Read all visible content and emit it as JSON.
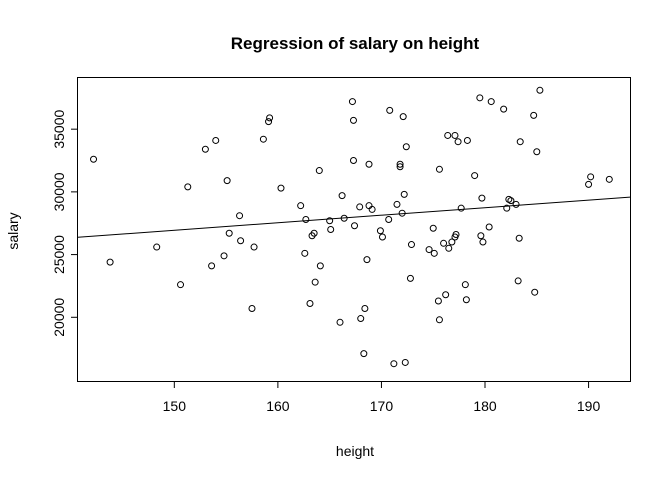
{
  "chart_data": {
    "type": "scatter",
    "title": "Regression of salary on height",
    "xlabel": "height",
    "ylabel": "salary",
    "xlim": [
      140.7,
      194.0
    ],
    "ylim": [
      14920,
      39080
    ],
    "xticks": [
      150,
      160,
      170,
      180,
      190
    ],
    "yticks": [
      20000,
      25000,
      30000,
      35000
    ],
    "grid": false,
    "regression_line": {
      "x": [
        140.7,
        194.0
      ],
      "y": [
        26380,
        29580
      ]
    },
    "points": [
      {
        "x": 142.2,
        "y": 32600
      },
      {
        "x": 143.8,
        "y": 24400
      },
      {
        "x": 148.3,
        "y": 25600
      },
      {
        "x": 150.6,
        "y": 22600
      },
      {
        "x": 151.3,
        "y": 30400
      },
      {
        "x": 153.0,
        "y": 33400
      },
      {
        "x": 153.6,
        "y": 24100
      },
      {
        "x": 154.0,
        "y": 34100
      },
      {
        "x": 154.8,
        "y": 24900
      },
      {
        "x": 155.1,
        "y": 30900
      },
      {
        "x": 155.3,
        "y": 26700
      },
      {
        "x": 156.3,
        "y": 28100
      },
      {
        "x": 156.4,
        "y": 26100
      },
      {
        "x": 157.5,
        "y": 20700
      },
      {
        "x": 157.7,
        "y": 25600
      },
      {
        "x": 158.6,
        "y": 34200
      },
      {
        "x": 159.1,
        "y": 35600
      },
      {
        "x": 159.2,
        "y": 35900
      },
      {
        "x": 160.3,
        "y": 30300
      },
      {
        "x": 162.2,
        "y": 28900
      },
      {
        "x": 162.6,
        "y": 25100
      },
      {
        "x": 162.7,
        "y": 27800
      },
      {
        "x": 163.1,
        "y": 21100
      },
      {
        "x": 163.3,
        "y": 26500
      },
      {
        "x": 163.5,
        "y": 26700
      },
      {
        "x": 163.6,
        "y": 22800
      },
      {
        "x": 164.0,
        "y": 31700
      },
      {
        "x": 164.1,
        "y": 24100
      },
      {
        "x": 165.0,
        "y": 27700
      },
      {
        "x": 165.1,
        "y": 27000
      },
      {
        "x": 166.0,
        "y": 19600
      },
      {
        "x": 166.2,
        "y": 29700
      },
      {
        "x": 166.4,
        "y": 27900
      },
      {
        "x": 167.2,
        "y": 37200
      },
      {
        "x": 167.3,
        "y": 35700
      },
      {
        "x": 167.3,
        "y": 32500
      },
      {
        "x": 167.4,
        "y": 27300
      },
      {
        "x": 167.9,
        "y": 28800
      },
      {
        "x": 168.0,
        "y": 19900
      },
      {
        "x": 168.3,
        "y": 17100
      },
      {
        "x": 168.4,
        "y": 20700
      },
      {
        "x": 168.6,
        "y": 24600
      },
      {
        "x": 168.8,
        "y": 28900
      },
      {
        "x": 168.8,
        "y": 32200
      },
      {
        "x": 169.1,
        "y": 28600
      },
      {
        "x": 169.9,
        "y": 26900
      },
      {
        "x": 170.1,
        "y": 26400
      },
      {
        "x": 170.7,
        "y": 27800
      },
      {
        "x": 170.8,
        "y": 36500
      },
      {
        "x": 171.2,
        "y": 16300
      },
      {
        "x": 171.5,
        "y": 29000
      },
      {
        "x": 171.8,
        "y": 32200
      },
      {
        "x": 171.8,
        "y": 32000
      },
      {
        "x": 172.0,
        "y": 28300
      },
      {
        "x": 172.1,
        "y": 36000
      },
      {
        "x": 172.2,
        "y": 29800
      },
      {
        "x": 172.3,
        "y": 16400
      },
      {
        "x": 172.4,
        "y": 33600
      },
      {
        "x": 172.8,
        "y": 23100
      },
      {
        "x": 172.9,
        "y": 25800
      },
      {
        "x": 174.6,
        "y": 25400
      },
      {
        "x": 175.0,
        "y": 27100
      },
      {
        "x": 175.1,
        "y": 25100
      },
      {
        "x": 175.5,
        "y": 21300
      },
      {
        "x": 175.6,
        "y": 31800
      },
      {
        "x": 175.6,
        "y": 19800
      },
      {
        "x": 176.0,
        "y": 25900
      },
      {
        "x": 176.2,
        "y": 21800
      },
      {
        "x": 176.4,
        "y": 34500
      },
      {
        "x": 176.5,
        "y": 25500
      },
      {
        "x": 176.8,
        "y": 26000
      },
      {
        "x": 177.1,
        "y": 26400
      },
      {
        "x": 177.1,
        "y": 34500
      },
      {
        "x": 177.2,
        "y": 26600
      },
      {
        "x": 177.4,
        "y": 34000
      },
      {
        "x": 177.7,
        "y": 28700
      },
      {
        "x": 178.1,
        "y": 22600
      },
      {
        "x": 178.2,
        "y": 21400
      },
      {
        "x": 178.3,
        "y": 34100
      },
      {
        "x": 179.0,
        "y": 31300
      },
      {
        "x": 179.5,
        "y": 37500
      },
      {
        "x": 179.6,
        "y": 26500
      },
      {
        "x": 179.7,
        "y": 29500
      },
      {
        "x": 179.8,
        "y": 26000
      },
      {
        "x": 180.4,
        "y": 27200
      },
      {
        "x": 180.6,
        "y": 37200
      },
      {
        "x": 181.8,
        "y": 36600
      },
      {
        "x": 182.1,
        "y": 28700
      },
      {
        "x": 182.3,
        "y": 29400
      },
      {
        "x": 182.5,
        "y": 29300
      },
      {
        "x": 183.0,
        "y": 29000
      },
      {
        "x": 183.2,
        "y": 22900
      },
      {
        "x": 183.3,
        "y": 26300
      },
      {
        "x": 183.4,
        "y": 34000
      },
      {
        "x": 184.7,
        "y": 36100
      },
      {
        "x": 184.8,
        "y": 22000
      },
      {
        "x": 185.0,
        "y": 33200
      },
      {
        "x": 185.3,
        "y": 38100
      },
      {
        "x": 190.0,
        "y": 30600
      },
      {
        "x": 190.2,
        "y": 31200
      },
      {
        "x": 192.0,
        "y": 31000
      }
    ]
  }
}
